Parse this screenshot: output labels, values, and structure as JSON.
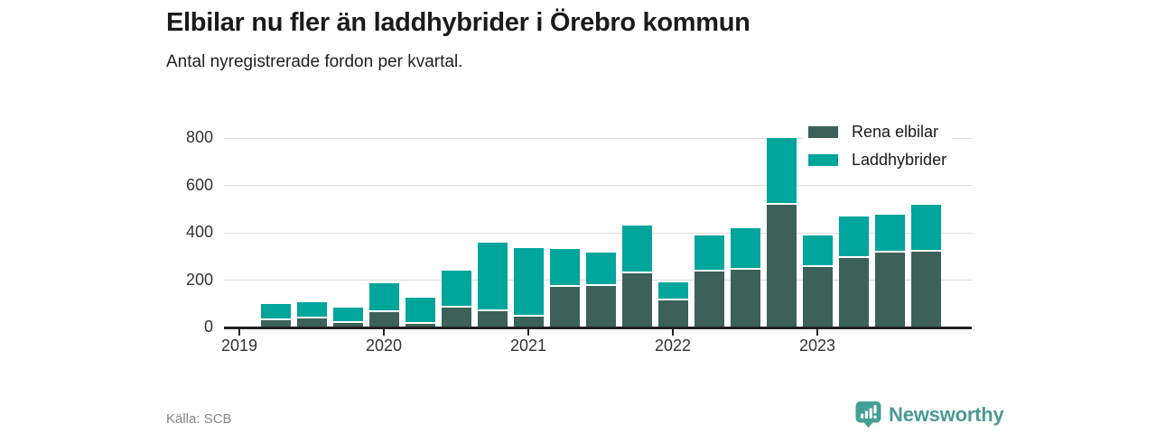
{
  "header": {
    "title": "Elbilar nu fler än laddhybrider i Örebro kommun",
    "subtitle": "Antal nyregistrerade fordon per kvartal."
  },
  "footer": {
    "source": "Källa: SCB",
    "brand": "Newsworthy"
  },
  "colors": {
    "electric": "#3c6159",
    "hybrid": "#00a59b",
    "gridline": "#dcdcdc",
    "axis": "#222222",
    "brand": "#4a9b92",
    "badge": "#44a097"
  },
  "chart_data": {
    "type": "bar",
    "stacked": true,
    "title": "Elbilar nu fler än laddhybrider i Örebro kommun",
    "subtitle": "Antal nyregistrerade fordon per kvartal.",
    "xlabel": "",
    "ylabel": "",
    "ylim": [
      0,
      800
    ],
    "yticks": [
      0,
      200,
      400,
      600,
      800
    ],
    "grid": "horizontal",
    "legend_position": "top-right",
    "x_tick_labels": [
      "2019",
      "2020",
      "2021",
      "2022",
      "2023"
    ],
    "categories": [
      "2019 Q2",
      "2019 Q3",
      "2019 Q4",
      "2020 Q1",
      "2020 Q2",
      "2020 Q3",
      "2020 Q4",
      "2021 Q1",
      "2021 Q2",
      "2021 Q3",
      "2021 Q4",
      "2022 Q1",
      "2022 Q2",
      "2022 Q3",
      "2022 Q4",
      "2023 Q1",
      "2023 Q2",
      "2023 Q3",
      "2023 Q4"
    ],
    "series": [
      {
        "name": "Rena elbilar",
        "color_key": "electric",
        "values": [
          30,
          40,
          20,
          65,
          15,
          85,
          70,
          45,
          170,
          175,
          230,
          115,
          235,
          245,
          520,
          255,
          295,
          315,
          320
        ]
      },
      {
        "name": "Laddhybrider",
        "color_key": "hybrid",
        "values": [
          70,
          65,
          65,
          120,
          110,
          155,
          290,
          290,
          160,
          140,
          200,
          75,
          155,
          175,
          280,
          135,
          175,
          160,
          200
        ]
      }
    ]
  }
}
